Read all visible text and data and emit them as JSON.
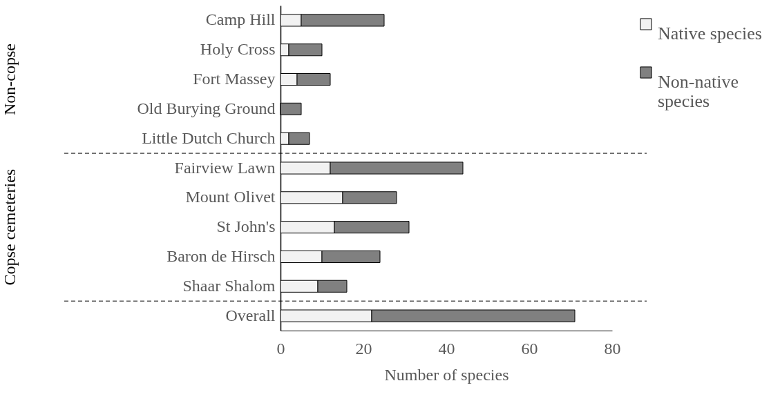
{
  "chart_data": {
    "type": "bar",
    "orientation": "horizontal",
    "stacked": true,
    "xlabel": "Number of species",
    "categories": [
      "Camp Hill",
      "Holy Cross",
      "Fort Massey",
      "Old Burying Ground",
      "Little Dutch Church",
      "Fairview Lawn",
      "Mount Olivet",
      "St John's",
      "Baron de Hirsch",
      "Shaar Shalom",
      "Overall"
    ],
    "series": [
      {
        "name": "Native species",
        "color": "#f2f2f2",
        "values": [
          5,
          2,
          4,
          0,
          2,
          12,
          15,
          13,
          10,
          9,
          22
        ]
      },
      {
        "name": "Non-native species",
        "color": "#808080",
        "values": [
          20,
          8,
          8,
          5,
          5,
          32,
          13,
          18,
          14,
          7,
          49
        ]
      }
    ],
    "xlim": [
      0,
      80
    ],
    "xticks": [
      0,
      20,
      40,
      60,
      80
    ],
    "grid": false,
    "legend": "top right",
    "ref_lines": [
      {
        "axis": "y",
        "value": "Little Dutch Church",
        "line_style": "dashed"
      },
      {
        "axis": "y",
        "value": "Shaar Shalom",
        "line_style": "dashed"
      }
    ],
    "annotations": [
      "Non-copse",
      "Copse cemeteries"
    ]
  }
}
